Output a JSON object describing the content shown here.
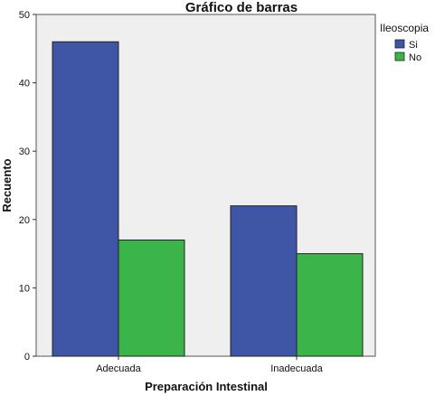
{
  "chart_data": {
    "type": "bar",
    "title": "Gráfico de barras",
    "xlabel": "Preparación Intestinal",
    "ylabel": "Recuento",
    "categories": [
      "Adecuada",
      "Inadecuada"
    ],
    "series": [
      {
        "name": "Si",
        "values": [
          46,
          22
        ],
        "color": "#3f56a6"
      },
      {
        "name": "No",
        "values": [
          17,
          15
        ],
        "color": "#3bb54a"
      }
    ],
    "ylim": [
      0,
      50
    ],
    "yticks": [
      0,
      10,
      20,
      30,
      40,
      50
    ],
    "legend": {
      "title": "Ileoscopia",
      "position": "top-right"
    },
    "plot_background": "#efefef",
    "grid": false
  }
}
